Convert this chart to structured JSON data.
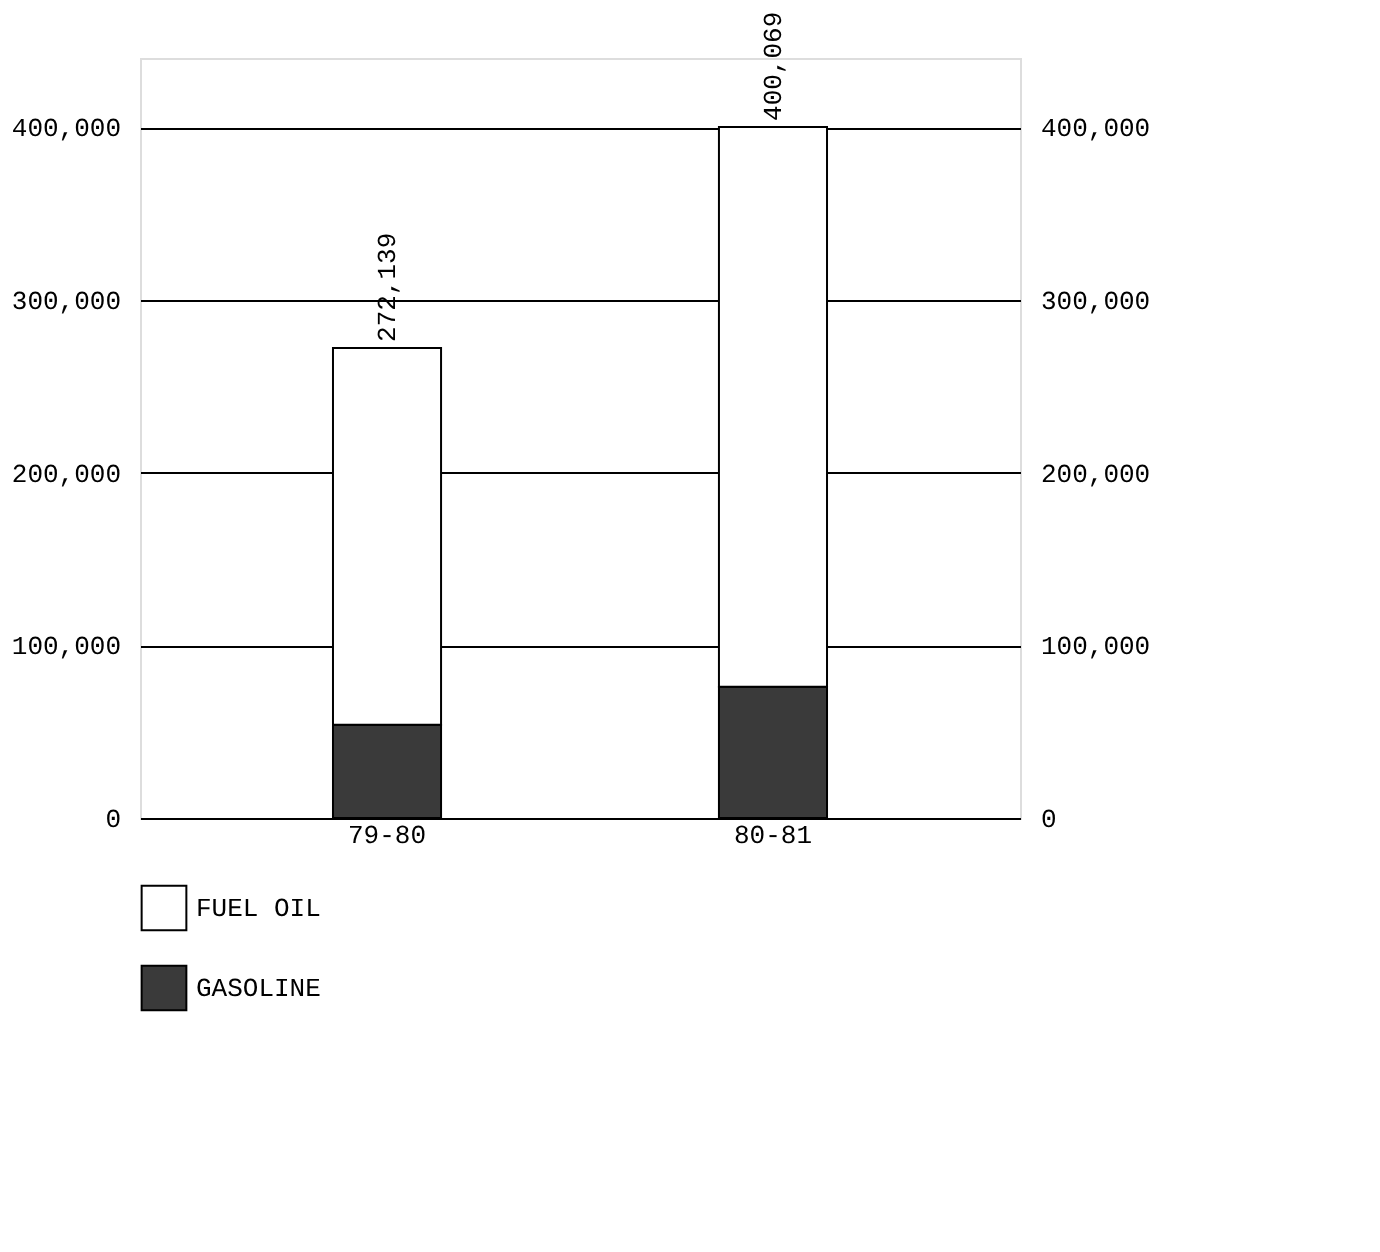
{
  "chart_data": {
    "type": "bar",
    "stacked": true,
    "categories": [
      "79-80",
      "80-81"
    ],
    "series": [
      {
        "name": "GASOLINE",
        "color": "#3a3a3a",
        "values": [
          54000,
          76000
        ]
      },
      {
        "name": "FUEL OIL",
        "color": "#ffffff",
        "values": [
          218139,
          324069
        ]
      }
    ],
    "totals": [
      "272,139",
      "400,069"
    ],
    "ylim": [
      0,
      440000
    ],
    "yticks": [
      0,
      {
        "value": 100000,
        "label": "100,000"
      },
      {
        "value": 200000,
        "label": "200,000"
      },
      {
        "value": 300000,
        "label": "300,000"
      },
      {
        "value": 400000,
        "label": "400,000"
      }
    ],
    "y2lim": [
      0,
      440000
    ],
    "y2ticks": [
      0,
      {
        "value": 100000,
        "label": "100,000"
      },
      {
        "value": 200000,
        "label": "200,000"
      },
      {
        "value": 300000,
        "label": "300,000"
      },
      {
        "value": 400000,
        "label": "400,000"
      }
    ],
    "grid": "y",
    "legend": "bottom"
  }
}
